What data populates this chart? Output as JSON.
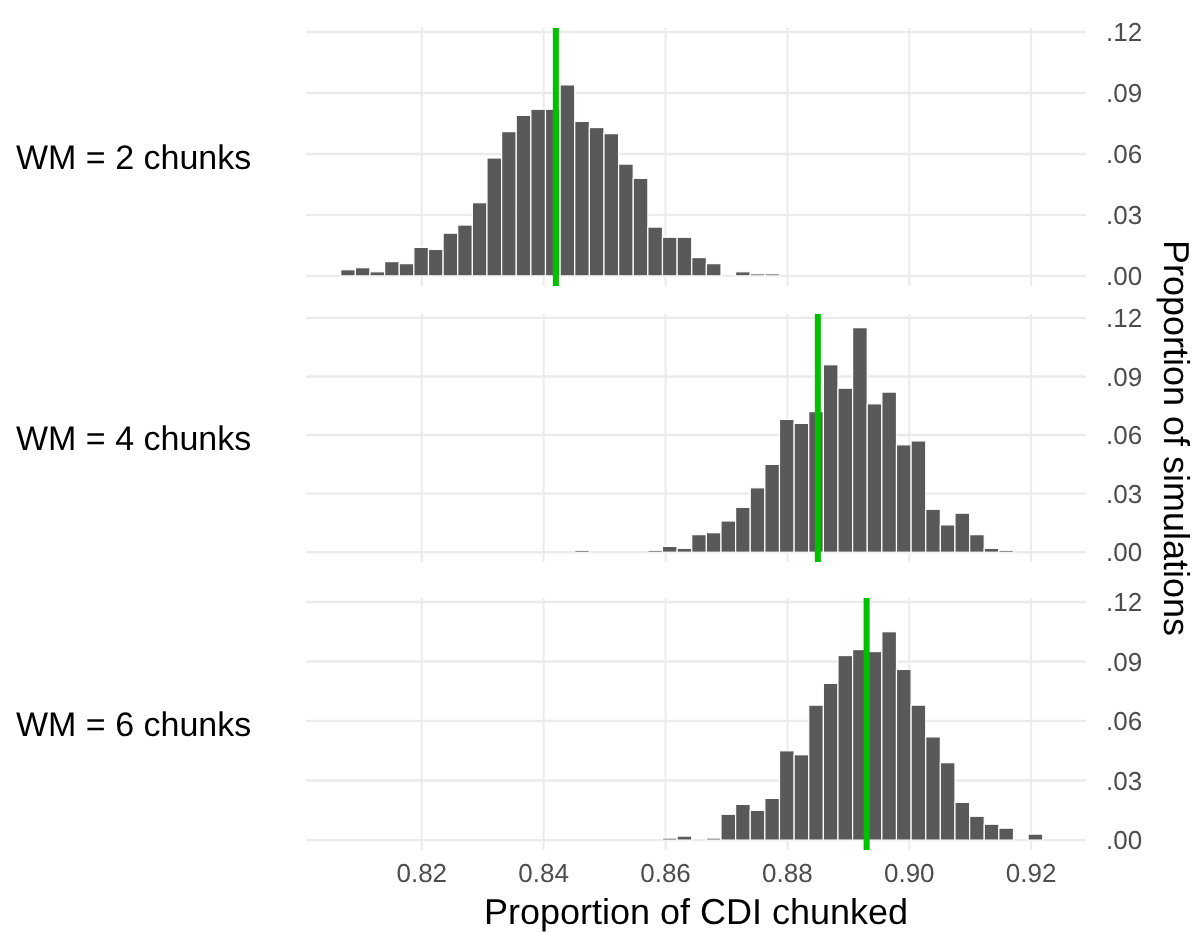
{
  "chart_data": [
    {
      "type": "histogram",
      "title": "WM = 2 chunks",
      "color": "#595959",
      "grid": true,
      "tick_labels": "y",
      "xlim": [
        0.801,
        0.929
      ],
      "xticks": [
        0.82,
        0.84,
        0.86,
        0.88,
        0.9,
        0.92
      ],
      "ylim": [
        -0.005,
        0.122
      ],
      "yticks": [
        {
          "value": 0,
          "label": ".00"
        },
        {
          "value": 0.03,
          "label": ".03"
        },
        {
          "value": 0.06,
          "label": ".06"
        },
        {
          "value": 0.09,
          "label": ".09"
        },
        {
          "value": 0.12,
          "label": ".12"
        }
      ],
      "bins": [
        0.8067,
        0.8091,
        0.8115,
        0.8139,
        0.8163,
        0.8187,
        0.8211,
        0.8235,
        0.8259,
        0.8283,
        0.8307,
        0.8331,
        0.8355,
        0.8379,
        0.8403,
        0.8427,
        0.8451,
        0.8475,
        0.8499,
        0.8523,
        0.8547,
        0.8571,
        0.8595,
        0.8619,
        0.8643,
        0.8667,
        0.8691,
        0.8715,
        0.8739,
        0.8763,
        0.8787,
        0.8811,
        0.8835,
        0.8859,
        0.8883,
        0.8907,
        0.8931,
        0.8955,
        0.8979,
        0.9003,
        0.9027,
        0.9051,
        0.9075,
        0.9099,
        0.9123,
        0.9147,
        0.9171,
        0.9195,
        0.9219,
        0.9243
      ],
      "values": [
        0.003,
        0.004,
        0.002,
        0.007,
        0.006,
        0.014,
        0.013,
        0.021,
        0.025,
        0.036,
        0.058,
        0.071,
        0.079,
        0.082,
        0.082,
        0.094,
        0.076,
        0.073,
        0.07,
        0.055,
        0.048,
        0.024,
        0.019,
        0.019,
        0.009,
        0.006,
        0,
        0.002,
        0.001,
        0.001,
        0,
        0,
        0,
        0,
        0,
        0,
        0,
        0,
        0,
        0,
        0,
        0,
        0,
        0,
        0,
        0,
        0,
        0,
        0
      ],
      "ref_lines": [
        {
          "axis": "x",
          "value": 0.842,
          "color": "#00c000"
        }
      ]
    },
    {
      "type": "histogram",
      "title": "WM = 4 chunks",
      "ylabel": "Proportion of simulations",
      "color": "#595959",
      "grid": true,
      "tick_labels": "y",
      "xlim": [
        0.801,
        0.929
      ],
      "xticks": [
        0.82,
        0.84,
        0.86,
        0.88,
        0.9,
        0.92
      ],
      "ylim": [
        -0.005,
        0.122
      ],
      "yticks": [
        {
          "value": 0,
          "label": ".00"
        },
        {
          "value": 0.03,
          "label": ".03"
        },
        {
          "value": 0.06,
          "label": ".06"
        },
        {
          "value": 0.09,
          "label": ".09"
        },
        {
          "value": 0.12,
          "label": ".12"
        }
      ],
      "bins": [
        0.8067,
        0.8091,
        0.8115,
        0.8139,
        0.8163,
        0.8187,
        0.8211,
        0.8235,
        0.8259,
        0.8283,
        0.8307,
        0.8331,
        0.8355,
        0.8379,
        0.8403,
        0.8427,
        0.8451,
        0.8475,
        0.8499,
        0.8523,
        0.8547,
        0.8571,
        0.8595,
        0.8619,
        0.8643,
        0.8667,
        0.8691,
        0.8715,
        0.8739,
        0.8763,
        0.8787,
        0.8811,
        0.8835,
        0.8859,
        0.8883,
        0.8907,
        0.8931,
        0.8955,
        0.8979,
        0.9003,
        0.9027,
        0.9051,
        0.9075,
        0.9099,
        0.9123,
        0.9147,
        0.9171,
        0.9195,
        0.9219,
        0.9243
      ],
      "values": [
        0,
        0,
        0,
        0,
        0,
        0,
        0,
        0,
        0,
        0,
        0,
        0,
        0,
        0,
        0,
        0,
        0.001,
        0,
        0,
        0,
        0,
        0.001,
        0.003,
        0.002,
        0.009,
        0.01,
        0.016,
        0.023,
        0.033,
        0.045,
        0.068,
        0.066,
        0.072,
        0.096,
        0.084,
        0.115,
        0.076,
        0.082,
        0.055,
        0.057,
        0.022,
        0.014,
        0.02,
        0.009,
        0.002,
        0.001,
        0,
        0,
        0
      ],
      "ref_lines": [
        {
          "axis": "x",
          "value": 0.885,
          "color": "#00c000"
        }
      ]
    },
    {
      "type": "histogram",
      "title": "WM = 6 chunks",
      "xlabel": "Proportion of CDI chunked",
      "color": "#595959",
      "grid": true,
      "xlim": [
        0.801,
        0.929
      ],
      "xticks": [
        0.82,
        0.84,
        0.86,
        0.88,
        {
          "value": 0.9,
          "label": "0.90"
        },
        0.92
      ],
      "ylim": [
        -0.005,
        0.122
      ],
      "yticks": [
        {
          "value": 0,
          "label": ".00"
        },
        {
          "value": 0.03,
          "label": ".03"
        },
        {
          "value": 0.06,
          "label": ".06"
        },
        {
          "value": 0.09,
          "label": ".09"
        },
        {
          "value": 0.12,
          "label": ".12"
        }
      ],
      "bins": [
        0.8067,
        0.8091,
        0.8115,
        0.8139,
        0.8163,
        0.8187,
        0.8211,
        0.8235,
        0.8259,
        0.8283,
        0.8307,
        0.8331,
        0.8355,
        0.8379,
        0.8403,
        0.8427,
        0.8451,
        0.8475,
        0.8499,
        0.8523,
        0.8547,
        0.8571,
        0.8595,
        0.8619,
        0.8643,
        0.8667,
        0.8691,
        0.8715,
        0.8739,
        0.8763,
        0.8787,
        0.8811,
        0.8835,
        0.8859,
        0.8883,
        0.8907,
        0.8931,
        0.8955,
        0.8979,
        0.9003,
        0.9027,
        0.9051,
        0.9075,
        0.9099,
        0.9123,
        0.9147,
        0.9171,
        0.9195,
        0.9219,
        0.9243
      ],
      "values": [
        0,
        0,
        0,
        0,
        0,
        0,
        0,
        0,
        0,
        0,
        0,
        0,
        0,
        0,
        0,
        0,
        0,
        0,
        0,
        0,
        0,
        0,
        0.001,
        0.002,
        0,
        0.001,
        0.013,
        0.018,
        0.015,
        0.021,
        0.045,
        0.043,
        0.068,
        0.079,
        0.093,
        0.096,
        0.095,
        0.105,
        0.086,
        0.068,
        0.052,
        0.039,
        0.019,
        0.012,
        0.008,
        0.006,
        0,
        0.003,
        0
      ],
      "ref_lines": [
        {
          "axis": "x",
          "value": 0.893,
          "color": "#00c000"
        }
      ]
    }
  ]
}
